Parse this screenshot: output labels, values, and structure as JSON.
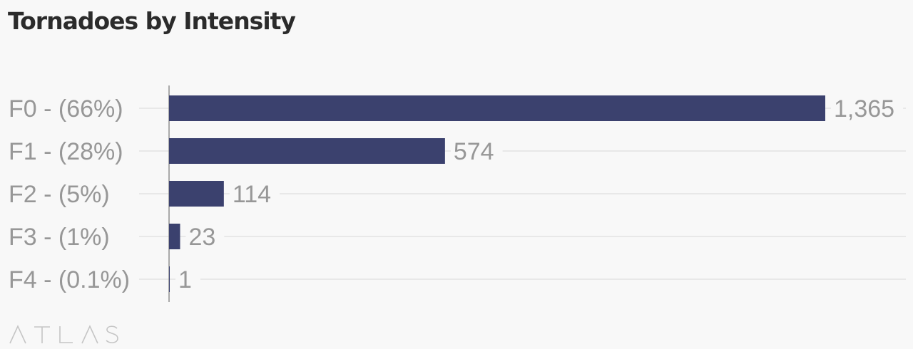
{
  "title": "Tornadoes by Intensity",
  "branding": "ATLAS",
  "colors": {
    "bar": "#3b416e",
    "category_label": "#979797",
    "value_label": "#979797",
    "grid": "#e2e2e2",
    "axis": "#909090",
    "title": "#2b2b2b",
    "logo": "#c5c5c5",
    "background": "#f8f8f8"
  },
  "chart_data": {
    "type": "bar",
    "orientation": "horizontal",
    "title": "Tornadoes by Intensity",
    "categories": [
      "F0 - (66%)",
      "F1 - (28%)",
      "F2 - (5%)",
      "F3 - (1%)",
      "F4 - (0.1%)"
    ],
    "values": [
      1365,
      574,
      114,
      23,
      1
    ],
    "value_labels": [
      "1,365",
      "574",
      "114",
      "23",
      "1"
    ],
    "xlim": [
      0,
      1365
    ],
    "grid": true,
    "legend": "none"
  }
}
